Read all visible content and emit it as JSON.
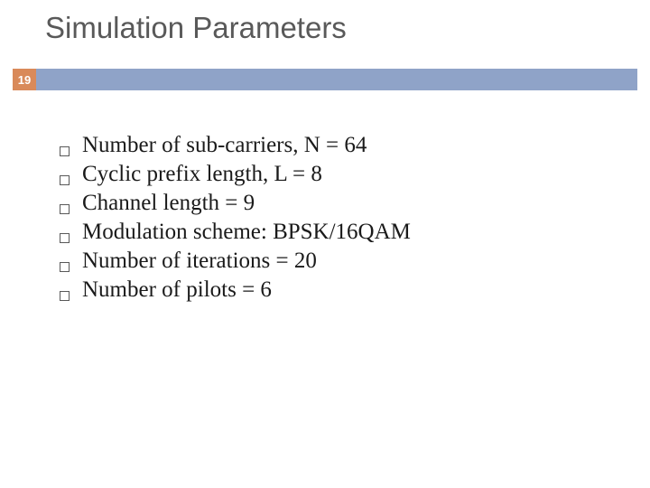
{
  "slide": {
    "title": "Simulation Parameters",
    "page_number": "19",
    "title_color": "#595959",
    "title_fontsize": 33,
    "badge_bg": "#d98a5a",
    "badge_fg": "#ffffff",
    "divider_bg": "#8fa3c8",
    "bullet_border": "#595959",
    "bullet_text_color": "#1a1a1a",
    "bullet_fontsize": 25,
    "bullets": [
      "Number of sub-carriers, N = 64",
      "Cyclic prefix length, L = 8",
      "Channel length = 9",
      "Modulation scheme: BPSK/16QAM",
      "Number of iterations = 20",
      "Number of pilots = 6"
    ]
  }
}
